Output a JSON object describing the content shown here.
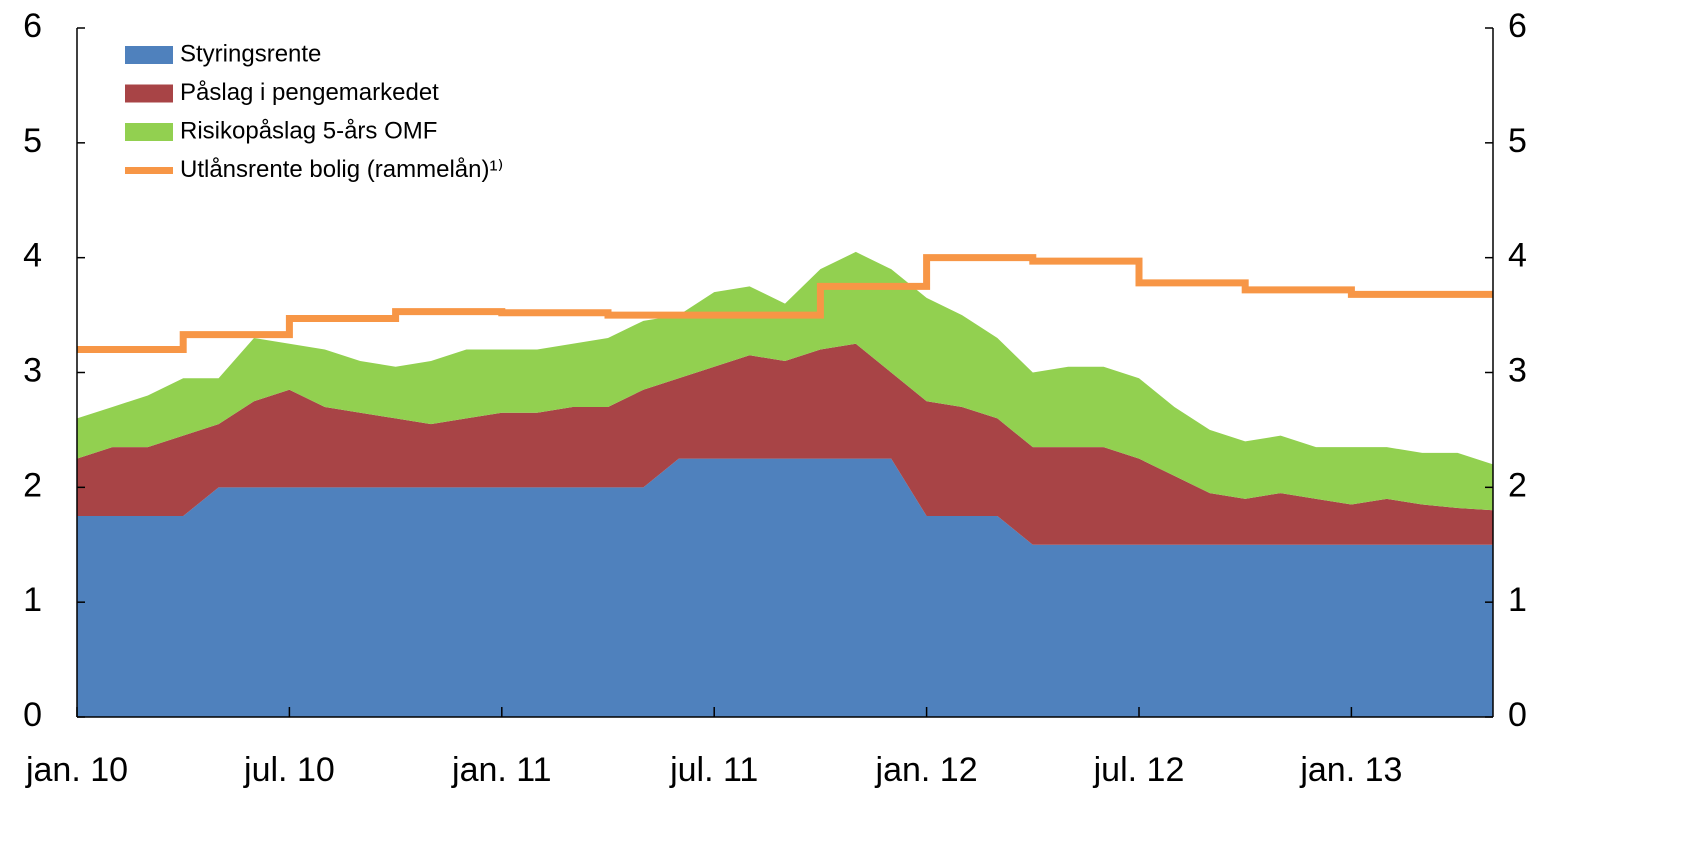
{
  "chart_data": {
    "type": "stacked_area_line",
    "categories": [
      "jan. 10",
      null,
      null,
      null,
      null,
      null,
      "jul. 10",
      null,
      null,
      null,
      null,
      null,
      "jan. 11",
      null,
      null,
      null,
      null,
      null,
      "jul. 11",
      null,
      null,
      null,
      null,
      null,
      "jan. 12",
      null,
      null,
      null,
      null,
      null,
      "jul. 12",
      null,
      null,
      null,
      null,
      null,
      "jan. 13",
      null,
      null,
      null,
      null
    ],
    "series": [
      {
        "name": "Styringsrente",
        "color": "#4f81bd",
        "kind": "area",
        "values": [
          1.75,
          1.75,
          1.75,
          1.75,
          2.0,
          2.0,
          2.0,
          2.0,
          2.0,
          2.0,
          2.0,
          2.0,
          2.0,
          2.0,
          2.0,
          2.0,
          2.0,
          2.25,
          2.25,
          2.25,
          2.25,
          2.25,
          2.25,
          2.25,
          1.75,
          1.75,
          1.75,
          1.5,
          1.5,
          1.5,
          1.5,
          1.5,
          1.5,
          1.5,
          1.5,
          1.5,
          1.5,
          1.5,
          1.5,
          1.5,
          1.5
        ]
      },
      {
        "name": "Påslag i pengemarkedet",
        "color": "#a84446",
        "kind": "area",
        "values": [
          0.5,
          0.6,
          0.6,
          0.7,
          0.55,
          0.75,
          0.85,
          0.7,
          0.65,
          0.6,
          0.55,
          0.6,
          0.65,
          0.65,
          0.7,
          0.7,
          0.85,
          0.7,
          0.8,
          0.9,
          0.85,
          0.95,
          1.0,
          0.75,
          1.0,
          0.95,
          0.85,
          0.85,
          0.85,
          0.85,
          0.75,
          0.6,
          0.45,
          0.4,
          0.45,
          0.4,
          0.35,
          0.4,
          0.35,
          0.32,
          0.3
        ]
      },
      {
        "name": "Risikopåslag 5-års OMF",
        "color": "#92d050",
        "kind": "area",
        "values": [
          0.35,
          0.35,
          0.45,
          0.5,
          0.4,
          0.55,
          0.4,
          0.5,
          0.45,
          0.45,
          0.55,
          0.6,
          0.55,
          0.55,
          0.55,
          0.6,
          0.6,
          0.55,
          0.65,
          0.6,
          0.5,
          0.7,
          0.8,
          0.9,
          0.9,
          0.8,
          0.7,
          0.65,
          0.7,
          0.7,
          0.7,
          0.6,
          0.55,
          0.5,
          0.5,
          0.45,
          0.5,
          0.45,
          0.45,
          0.48,
          0.4
        ]
      },
      {
        "name": "Utlånsrente bolig (rammelån)¹⁾",
        "color": "#f79646",
        "kind": "line",
        "values": [
          3.2,
          3.2,
          3.2,
          3.33,
          3.33,
          3.33,
          3.47,
          3.47,
          3.47,
          3.53,
          3.53,
          3.53,
          3.52,
          3.52,
          3.52,
          3.5,
          3.5,
          3.5,
          3.5,
          3.5,
          3.5,
          3.75,
          3.75,
          3.75,
          4.0,
          4.0,
          4.0,
          3.97,
          3.97,
          3.97,
          3.78,
          3.78,
          3.78,
          3.72,
          3.72,
          3.72,
          3.68,
          3.68,
          3.68,
          3.68,
          3.68
        ]
      }
    ],
    "ylim": [
      0,
      6
    ],
    "yticks": [
      0,
      1,
      2,
      3,
      4,
      5,
      6
    ],
    "legend": "top-left"
  }
}
